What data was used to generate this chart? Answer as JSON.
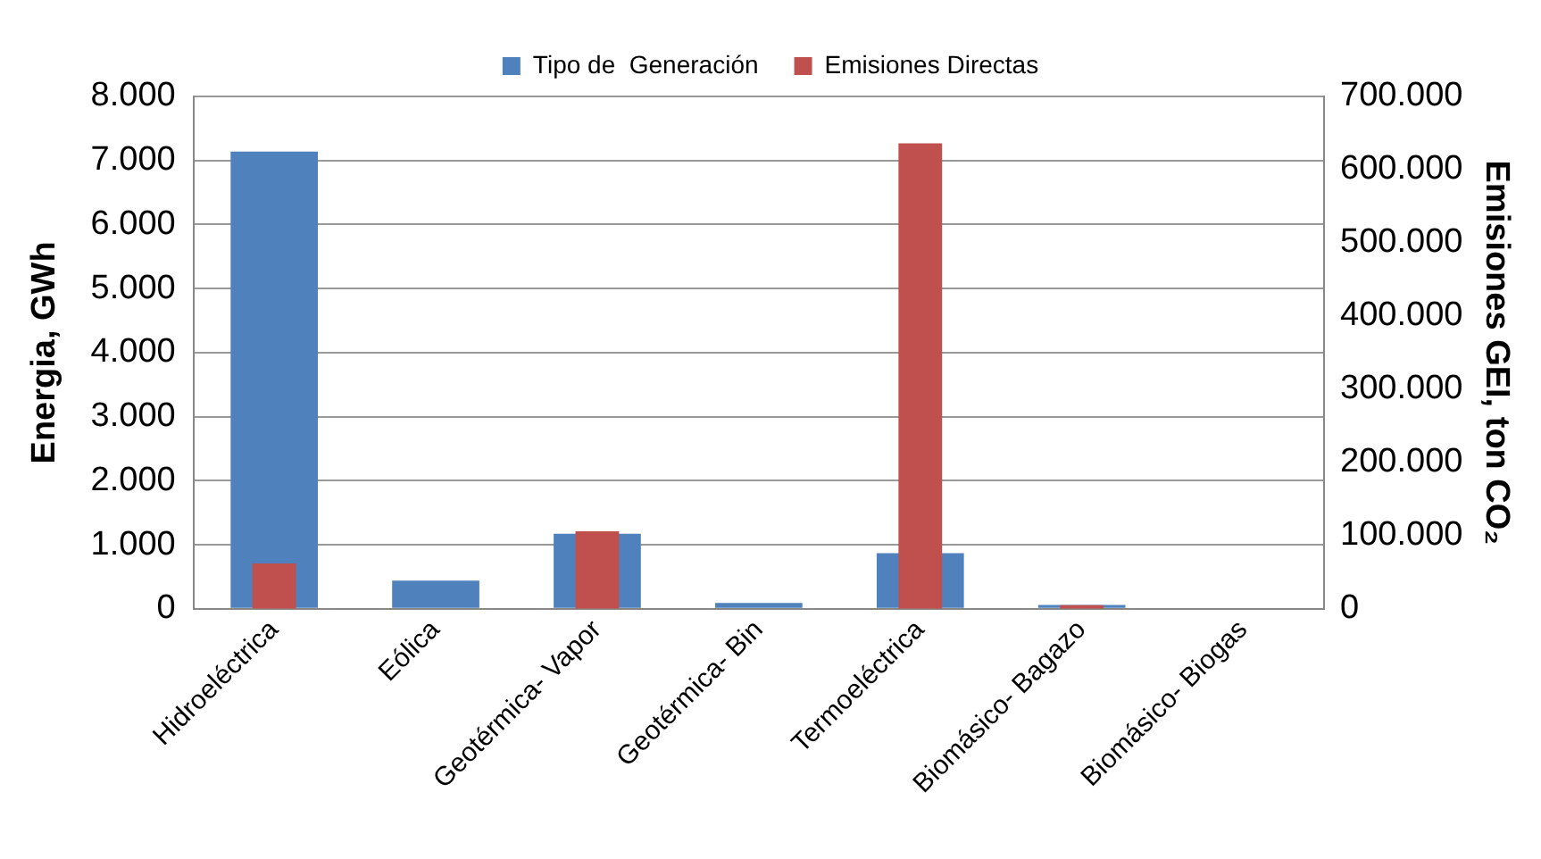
{
  "chart_data": {
    "type": "bar",
    "categories": [
      "Hidroeléctrica",
      "Eólica",
      "Geotérmica- Vapor",
      "Geotérmica- Bin",
      "Termoeléctrica",
      "Biomásico- Bagazo",
      "Biomásico- Biogas"
    ],
    "series": [
      {
        "name": "Tipo de  Generación",
        "color": "#4f81bd",
        "values": [
          7140,
          440,
          1170,
          90,
          870,
          60,
          0
        ]
      },
      {
        "name": "Emisiones Directas",
        "color": "#c0504d",
        "axis": "y2",
        "values": [
          62000,
          0,
          106000,
          0,
          636000,
          5000,
          0
        ]
      }
    ],
    "ylabel": "Energia, GWh",
    "y2label": "Emisiones GEI, ton CO₂",
    "ylim": [
      0,
      8000
    ],
    "yticks": [
      {
        "value": 0,
        "label": "0"
      },
      {
        "value": 1000,
        "label": "1.000"
      },
      {
        "value": 2000,
        "label": "2.000"
      },
      {
        "value": 3000,
        "label": "3.000"
      },
      {
        "value": 4000,
        "label": "4.000"
      },
      {
        "value": 5000,
        "label": "5.000"
      },
      {
        "value": 6000,
        "label": "6.000"
      },
      {
        "value": 7000,
        "label": "7.000"
      },
      {
        "value": 8000,
        "label": "8.000"
      }
    ],
    "y2lim": [
      0,
      700000
    ],
    "y2ticks": [
      {
        "value": 0,
        "label": "0"
      },
      {
        "value": 100000,
        "label": "100.000"
      },
      {
        "value": 200000,
        "label": "200.000"
      },
      {
        "value": 300000,
        "label": "300.000"
      },
      {
        "value": 400000,
        "label": "400.000"
      },
      {
        "value": 500000,
        "label": "500.000"
      },
      {
        "value": 600000,
        "label": "600.000"
      },
      {
        "value": 700000,
        "label": "700.000"
      }
    ],
    "grid": "y",
    "legend": "top"
  }
}
